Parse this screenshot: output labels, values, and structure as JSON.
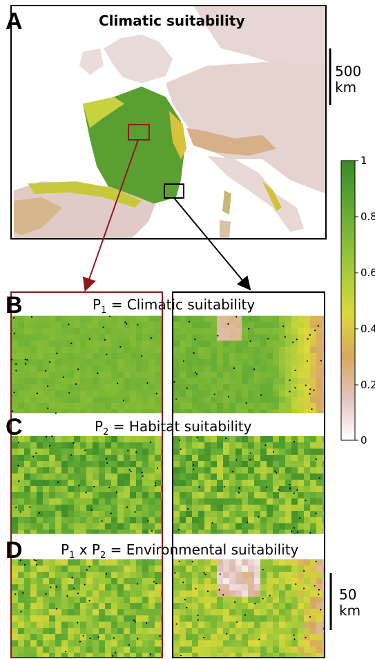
{
  "panels": {
    "a": {
      "letter": "A",
      "title": "Climatic suitability"
    },
    "b": {
      "letter": "B",
      "title_main": "P",
      "title_sub": "1",
      "title_rest": " = Climatic suitability"
    },
    "c": {
      "letter": "C",
      "title_main": "P",
      "title_sub": "2",
      "title_rest": " = Habitat suitability"
    },
    "d": {
      "letter": "D",
      "title_parts": [
        "P",
        "1",
        " x P",
        "2",
        " = Environmental suitability"
      ]
    }
  },
  "scalebar_large": {
    "value": "500",
    "unit": "km"
  },
  "scalebar_small": {
    "value": "50",
    "unit": "km"
  },
  "legend": {
    "ticks": [
      "1",
      "0.8",
      "0.6",
      "0.4",
      "0.2",
      "0"
    ],
    "colors": [
      "#3f8f2a",
      "#7fbf3a",
      "#d8dd3a",
      "#d4a36a",
      "#e9d4d2",
      "#ffffff"
    ]
  },
  "box_colors": {
    "left": "#8b1a1a",
    "right": "#000000"
  }
}
